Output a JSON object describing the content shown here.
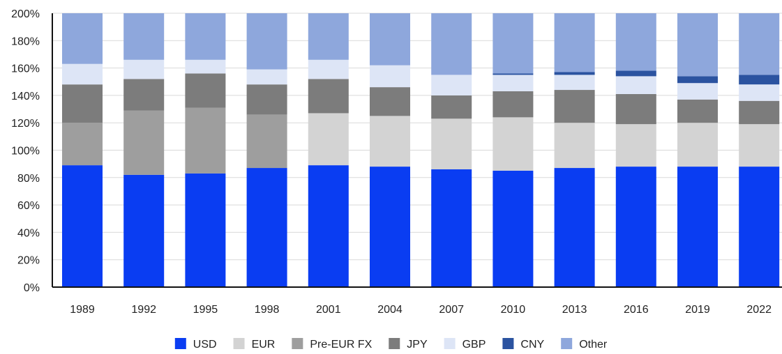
{
  "chart_data": {
    "type": "bar",
    "stacked": true,
    "title": "",
    "xlabel": "",
    "ylabel": "",
    "ylim": [
      0,
      200
    ],
    "y_ticks": [
      "0%",
      "20%",
      "40%",
      "60%",
      "80%",
      "100%",
      "120%",
      "140%",
      "160%",
      "180%",
      "200%"
    ],
    "grid": true,
    "legend_position": "bottom-center",
    "categories": [
      "1989",
      "1992",
      "1995",
      "1998",
      "2001",
      "2004",
      "2007",
      "2010",
      "2013",
      "2016",
      "2019",
      "2022"
    ],
    "series": [
      {
        "name": "USD",
        "color": "#0a3df2",
        "values": [
          89,
          82,
          83,
          87,
          89,
          88,
          86,
          85,
          87,
          88,
          88,
          88
        ]
      },
      {
        "name": "EUR",
        "color": "#d3d3d3",
        "values": [
          0,
          0,
          0,
          0,
          38,
          37,
          37,
          39,
          33,
          31,
          32,
          31
        ]
      },
      {
        "name": "Pre-EUR FX",
        "color": "#9e9e9e",
        "values": [
          31,
          47,
          48,
          39,
          0,
          0,
          0,
          0,
          0,
          0,
          0,
          0
        ]
      },
      {
        "name": "JPY",
        "color": "#7c7c7c",
        "values": [
          28,
          23,
          25,
          22,
          25,
          21,
          17,
          19,
          24,
          22,
          17,
          17
        ]
      },
      {
        "name": "GBP",
        "color": "#dde5f6",
        "values": [
          15,
          14,
          10,
          11,
          14,
          16,
          15,
          12,
          11,
          13,
          12,
          12
        ]
      },
      {
        "name": "CNY",
        "color": "#2b53a0",
        "values": [
          0,
          0,
          0,
          0,
          0,
          0,
          0,
          1,
          2,
          4,
          5,
          7
        ]
      },
      {
        "name": "Other",
        "color": "#8ea7dc",
        "values": [
          37,
          34,
          34,
          41,
          34,
          38,
          45,
          44,
          43,
          42,
          46,
          45
        ]
      }
    ]
  }
}
